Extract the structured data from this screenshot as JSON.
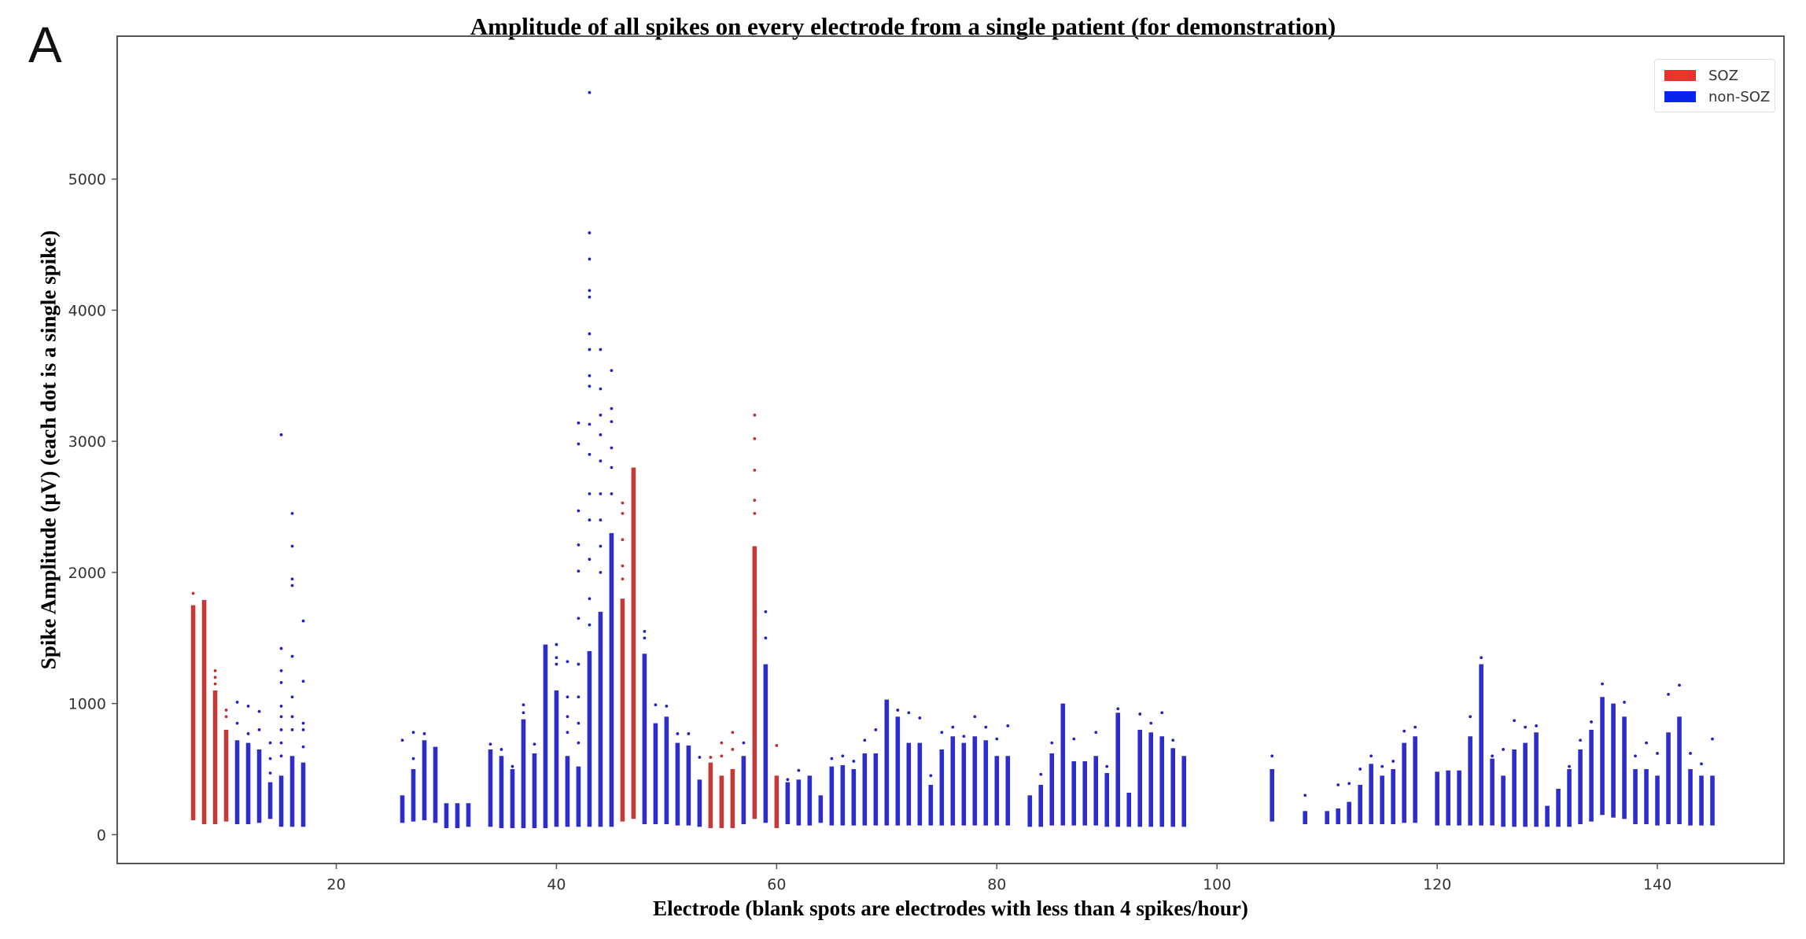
{
  "panel_label": "A",
  "chart_data": {
    "type": "scatter",
    "title": "Amplitude of all spikes on every electrode from a single patient (for demonstration)",
    "xlabel": "Electrode (blank spots are electrodes with less than 4 spikes/hour)",
    "ylabel": "Spike Amplitude (μV) (each dot is a single spike)",
    "xlim": [
      0.1,
      151.5
    ],
    "ylim": [
      -220,
      6090
    ],
    "xticks": [
      20,
      40,
      60,
      80,
      100,
      120,
      140
    ],
    "yticks": [
      0,
      1000,
      2000,
      3000,
      4000,
      5000
    ],
    "grid": false,
    "legend": {
      "placement": "top-right",
      "entries": [
        {
          "label": "SOZ",
          "color": "#e5352b"
        },
        {
          "label": "non-SOZ",
          "color": "#0a22ee"
        }
      ]
    },
    "colors": {
      "SOZ": "#c0302e",
      "non-SOZ": "#2323c4"
    },
    "electrodes": [
      {
        "e": 7,
        "soz": true,
        "min": 110,
        "max": 1750,
        "pts": [
          1840
        ]
      },
      {
        "e": 8,
        "soz": true,
        "min": 80,
        "max": 1790,
        "pts": []
      },
      {
        "e": 9,
        "soz": true,
        "min": 80,
        "max": 1100,
        "pts": [
          1250,
          1200,
          1150
        ]
      },
      {
        "e": 10,
        "soz": true,
        "min": 100,
        "max": 800,
        "pts": [
          950,
          900
        ]
      },
      {
        "e": 11,
        "soz": false,
        "min": 80,
        "max": 720,
        "pts": [
          850,
          1010
        ]
      },
      {
        "e": 12,
        "soz": false,
        "min": 80,
        "max": 700,
        "pts": [
          770,
          980
        ]
      },
      {
        "e": 13,
        "soz": false,
        "min": 90,
        "max": 650,
        "pts": [
          800,
          940
        ]
      },
      {
        "e": 14,
        "soz": false,
        "min": 120,
        "max": 400,
        "pts": [
          580,
          700,
          470
        ]
      },
      {
        "e": 15,
        "soz": false,
        "min": 60,
        "max": 450,
        "pts": [
          3050,
          1420,
          1250,
          1160,
          980,
          900,
          800,
          700,
          600
        ]
      },
      {
        "e": 16,
        "soz": false,
        "min": 60,
        "max": 600,
        "pts": [
          2450,
          2200,
          1950,
          1900,
          1360,
          1050,
          900,
          800
        ]
      },
      {
        "e": 17,
        "soz": false,
        "min": 60,
        "max": 550,
        "pts": [
          1630,
          1170,
          850,
          800,
          670
        ]
      },
      {
        "e": 26,
        "soz": false,
        "min": 90,
        "max": 300,
        "pts": [
          720
        ]
      },
      {
        "e": 27,
        "soz": false,
        "min": 100,
        "max": 500,
        "pts": [
          780,
          580
        ]
      },
      {
        "e": 28,
        "soz": false,
        "min": 110,
        "max": 720,
        "pts": [
          770
        ]
      },
      {
        "e": 29,
        "soz": false,
        "min": 90,
        "max": 670,
        "pts": []
      },
      {
        "e": 30,
        "soz": false,
        "min": 50,
        "max": 240,
        "pts": []
      },
      {
        "e": 31,
        "soz": false,
        "min": 50,
        "max": 240,
        "pts": []
      },
      {
        "e": 32,
        "soz": false,
        "min": 60,
        "max": 240,
        "pts": []
      },
      {
        "e": 34,
        "soz": false,
        "min": 60,
        "max": 650,
        "pts": [
          690
        ]
      },
      {
        "e": 35,
        "soz": false,
        "min": 50,
        "max": 600,
        "pts": [
          650
        ]
      },
      {
        "e": 36,
        "soz": false,
        "min": 50,
        "max": 500,
        "pts": [
          520
        ]
      },
      {
        "e": 37,
        "soz": false,
        "min": 50,
        "max": 880,
        "pts": [
          990,
          930
        ]
      },
      {
        "e": 38,
        "soz": false,
        "min": 50,
        "max": 620,
        "pts": [
          690
        ]
      },
      {
        "e": 39,
        "soz": false,
        "min": 50,
        "max": 1450,
        "pts": []
      },
      {
        "e": 40,
        "soz": false,
        "min": 60,
        "max": 1100,
        "pts": [
          1450,
          1350,
          1300
        ]
      },
      {
        "e": 41,
        "soz": false,
        "min": 60,
        "max": 600,
        "pts": [
          1320,
          1050,
          900,
          780
        ]
      },
      {
        "e": 42,
        "soz": false,
        "min": 60,
        "max": 520,
        "pts": [
          3140,
          2980,
          2470,
          2210,
          2010,
          1650,
          1300,
          1050,
          850,
          700
        ]
      },
      {
        "e": 43,
        "soz": false,
        "min": 60,
        "max": 1400,
        "pts": [
          5660,
          4590,
          4390,
          4150,
          4100,
          3820,
          3700,
          3500,
          3420,
          3130,
          2900,
          2600,
          2400,
          2100,
          1800,
          1600
        ]
      },
      {
        "e": 44,
        "soz": false,
        "min": 60,
        "max": 1700,
        "pts": [
          3700,
          3400,
          3200,
          3050,
          2850,
          2600,
          2400,
          2200,
          2000
        ]
      },
      {
        "e": 45,
        "soz": false,
        "min": 60,
        "max": 2300,
        "pts": [
          3540,
          3250,
          3150,
          2950,
          2800,
          2600
        ]
      },
      {
        "e": 46,
        "soz": true,
        "min": 100,
        "max": 1800,
        "pts": [
          2530,
          2450,
          2250,
          2050,
          1950
        ]
      },
      {
        "e": 47,
        "soz": true,
        "min": 120,
        "max": 2800,
        "pts": []
      },
      {
        "e": 48,
        "soz": false,
        "min": 80,
        "max": 1380,
        "pts": [
          1550,
          1500
        ]
      },
      {
        "e": 49,
        "soz": false,
        "min": 80,
        "max": 850,
        "pts": [
          990
        ]
      },
      {
        "e": 50,
        "soz": false,
        "min": 80,
        "max": 900,
        "pts": [
          980
        ]
      },
      {
        "e": 51,
        "soz": false,
        "min": 70,
        "max": 700,
        "pts": [
          770
        ]
      },
      {
        "e": 52,
        "soz": false,
        "min": 70,
        "max": 680,
        "pts": [
          770
        ]
      },
      {
        "e": 53,
        "soz": false,
        "min": 60,
        "max": 420,
        "pts": [
          590
        ]
      },
      {
        "e": 54,
        "soz": true,
        "min": 50,
        "max": 550,
        "pts": [
          590
        ]
      },
      {
        "e": 55,
        "soz": true,
        "min": 50,
        "max": 450,
        "pts": [
          700,
          600
        ]
      },
      {
        "e": 56,
        "soz": true,
        "min": 50,
        "max": 500,
        "pts": [
          780,
          650
        ]
      },
      {
        "e": 57,
        "soz": false,
        "min": 80,
        "max": 600,
        "pts": [
          700
        ]
      },
      {
        "e": 58,
        "soz": true,
        "min": 120,
        "max": 2200,
        "pts": [
          3200,
          3020,
          2780,
          2550,
          2450
        ]
      },
      {
        "e": 59,
        "soz": false,
        "min": 90,
        "max": 1300,
        "pts": [
          1700,
          1500
        ]
      },
      {
        "e": 60,
        "soz": true,
        "min": 50,
        "max": 450,
        "pts": [
          680
        ]
      },
      {
        "e": 61,
        "soz": false,
        "min": 80,
        "max": 400,
        "pts": [
          420
        ]
      },
      {
        "e": 62,
        "soz": false,
        "min": 70,
        "max": 420,
        "pts": [
          490
        ]
      },
      {
        "e": 63,
        "soz": false,
        "min": 70,
        "max": 450,
        "pts": []
      },
      {
        "e": 64,
        "soz": false,
        "min": 90,
        "max": 300,
        "pts": []
      },
      {
        "e": 65,
        "soz": false,
        "min": 70,
        "max": 520,
        "pts": [
          580
        ]
      },
      {
        "e": 66,
        "soz": false,
        "min": 70,
        "max": 530,
        "pts": [
          600
        ]
      },
      {
        "e": 67,
        "soz": false,
        "min": 70,
        "max": 500,
        "pts": [
          560
        ]
      },
      {
        "e": 68,
        "soz": false,
        "min": 70,
        "max": 620,
        "pts": [
          720
        ]
      },
      {
        "e": 69,
        "soz": false,
        "min": 70,
        "max": 620,
        "pts": [
          800
        ]
      },
      {
        "e": 70,
        "soz": false,
        "min": 70,
        "max": 1030,
        "pts": []
      },
      {
        "e": 71,
        "soz": false,
        "min": 70,
        "max": 900,
        "pts": [
          950
        ]
      },
      {
        "e": 72,
        "soz": false,
        "min": 70,
        "max": 700,
        "pts": [
          930
        ]
      },
      {
        "e": 73,
        "soz": false,
        "min": 70,
        "max": 700,
        "pts": [
          890
        ]
      },
      {
        "e": 74,
        "soz": false,
        "min": 70,
        "max": 380,
        "pts": [
          450
        ]
      },
      {
        "e": 75,
        "soz": false,
        "min": 70,
        "max": 650,
        "pts": [
          780
        ]
      },
      {
        "e": 76,
        "soz": false,
        "min": 70,
        "max": 750,
        "pts": [
          820
        ]
      },
      {
        "e": 77,
        "soz": false,
        "min": 70,
        "max": 700,
        "pts": [
          750
        ]
      },
      {
        "e": 78,
        "soz": false,
        "min": 70,
        "max": 750,
        "pts": [
          900
        ]
      },
      {
        "e": 79,
        "soz": false,
        "min": 70,
        "max": 720,
        "pts": [
          820
        ]
      },
      {
        "e": 80,
        "soz": false,
        "min": 70,
        "max": 600,
        "pts": [
          730
        ]
      },
      {
        "e": 81,
        "soz": false,
        "min": 70,
        "max": 600,
        "pts": [
          830
        ]
      },
      {
        "e": 83,
        "soz": false,
        "min": 60,
        "max": 300,
        "pts": []
      },
      {
        "e": 84,
        "soz": false,
        "min": 60,
        "max": 380,
        "pts": [
          460
        ]
      },
      {
        "e": 85,
        "soz": false,
        "min": 70,
        "max": 620,
        "pts": [
          700
        ]
      },
      {
        "e": 86,
        "soz": false,
        "min": 70,
        "max": 1000,
        "pts": []
      },
      {
        "e": 87,
        "soz": false,
        "min": 70,
        "max": 560,
        "pts": [
          730
        ]
      },
      {
        "e": 88,
        "soz": false,
        "min": 70,
        "max": 560,
        "pts": []
      },
      {
        "e": 89,
        "soz": false,
        "min": 70,
        "max": 600,
        "pts": [
          780
        ]
      },
      {
        "e": 90,
        "soz": false,
        "min": 60,
        "max": 470,
        "pts": [
          520
        ]
      },
      {
        "e": 91,
        "soz": false,
        "min": 60,
        "max": 930,
        "pts": [
          960
        ]
      },
      {
        "e": 92,
        "soz": false,
        "min": 60,
        "max": 320,
        "pts": []
      },
      {
        "e": 93,
        "soz": false,
        "min": 60,
        "max": 800,
        "pts": [
          920
        ]
      },
      {
        "e": 94,
        "soz": false,
        "min": 60,
        "max": 780,
        "pts": [
          850
        ]
      },
      {
        "e": 95,
        "soz": false,
        "min": 60,
        "max": 750,
        "pts": [
          930
        ]
      },
      {
        "e": 96,
        "soz": false,
        "min": 60,
        "max": 660,
        "pts": [
          720
        ]
      },
      {
        "e": 97,
        "soz": false,
        "min": 60,
        "max": 600,
        "pts": []
      },
      {
        "e": 105,
        "soz": false,
        "min": 100,
        "max": 500,
        "pts": [
          600
        ]
      },
      {
        "e": 108,
        "soz": false,
        "min": 80,
        "max": 180,
        "pts": [
          300
        ]
      },
      {
        "e": 110,
        "soz": false,
        "min": 80,
        "max": 180,
        "pts": []
      },
      {
        "e": 111,
        "soz": false,
        "min": 80,
        "max": 200,
        "pts": [
          380
        ]
      },
      {
        "e": 112,
        "soz": false,
        "min": 80,
        "max": 250,
        "pts": [
          390
        ]
      },
      {
        "e": 113,
        "soz": false,
        "min": 80,
        "max": 380,
        "pts": [
          500
        ]
      },
      {
        "e": 114,
        "soz": false,
        "min": 80,
        "max": 540,
        "pts": [
          600
        ]
      },
      {
        "e": 115,
        "soz": false,
        "min": 80,
        "max": 450,
        "pts": [
          520
        ]
      },
      {
        "e": 116,
        "soz": false,
        "min": 80,
        "max": 500,
        "pts": [
          560
        ]
      },
      {
        "e": 117,
        "soz": false,
        "min": 90,
        "max": 700,
        "pts": [
          790
        ]
      },
      {
        "e": 118,
        "soz": false,
        "min": 90,
        "max": 750,
        "pts": [
          820
        ]
      },
      {
        "e": 120,
        "soz": false,
        "min": 70,
        "max": 480,
        "pts": []
      },
      {
        "e": 121,
        "soz": false,
        "min": 70,
        "max": 490,
        "pts": []
      },
      {
        "e": 122,
        "soz": false,
        "min": 70,
        "max": 490,
        "pts": []
      },
      {
        "e": 123,
        "soz": false,
        "min": 70,
        "max": 750,
        "pts": [
          900
        ]
      },
      {
        "e": 124,
        "soz": false,
        "min": 70,
        "max": 1300,
        "pts": [
          1350
        ]
      },
      {
        "e": 125,
        "soz": false,
        "min": 70,
        "max": 580,
        "pts": [
          600
        ]
      },
      {
        "e": 126,
        "soz": false,
        "min": 60,
        "max": 450,
        "pts": [
          650
        ]
      },
      {
        "e": 127,
        "soz": false,
        "min": 60,
        "max": 650,
        "pts": [
          870
        ]
      },
      {
        "e": 128,
        "soz": false,
        "min": 60,
        "max": 700,
        "pts": [
          820
        ]
      },
      {
        "e": 129,
        "soz": false,
        "min": 60,
        "max": 780,
        "pts": [
          830
        ]
      },
      {
        "e": 130,
        "soz": false,
        "min": 60,
        "max": 220,
        "pts": []
      },
      {
        "e": 131,
        "soz": false,
        "min": 60,
        "max": 350,
        "pts": []
      },
      {
        "e": 132,
        "soz": false,
        "min": 60,
        "max": 500,
        "pts": [
          520
        ]
      },
      {
        "e": 133,
        "soz": false,
        "min": 80,
        "max": 650,
        "pts": [
          720
        ]
      },
      {
        "e": 134,
        "soz": false,
        "min": 100,
        "max": 800,
        "pts": [
          860
        ]
      },
      {
        "e": 135,
        "soz": false,
        "min": 150,
        "max": 1050,
        "pts": [
          1150
        ]
      },
      {
        "e": 136,
        "soz": false,
        "min": 130,
        "max": 1000,
        "pts": []
      },
      {
        "e": 137,
        "soz": false,
        "min": 120,
        "max": 900,
        "pts": [
          1010
        ]
      },
      {
        "e": 138,
        "soz": false,
        "min": 80,
        "max": 500,
        "pts": [
          600
        ]
      },
      {
        "e": 139,
        "soz": false,
        "min": 80,
        "max": 500,
        "pts": [
          700
        ]
      },
      {
        "e": 140,
        "soz": false,
        "min": 70,
        "max": 450,
        "pts": [
          620
        ]
      },
      {
        "e": 141,
        "soz": false,
        "min": 80,
        "max": 780,
        "pts": [
          1070
        ]
      },
      {
        "e": 142,
        "soz": false,
        "min": 80,
        "max": 900,
        "pts": [
          1140
        ]
      },
      {
        "e": 143,
        "soz": false,
        "min": 70,
        "max": 500,
        "pts": [
          620
        ]
      },
      {
        "e": 144,
        "soz": false,
        "min": 70,
        "max": 450,
        "pts": [
          540
        ]
      },
      {
        "e": 145,
        "soz": false,
        "min": 70,
        "max": 450,
        "pts": [
          730
        ]
      }
    ]
  }
}
